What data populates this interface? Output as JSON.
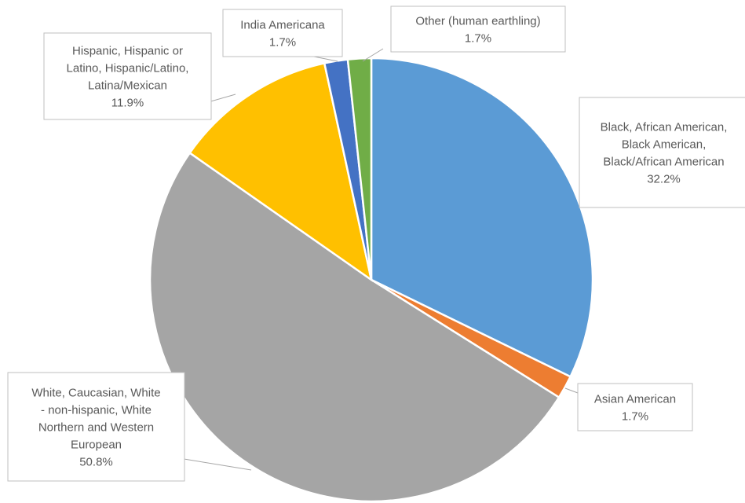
{
  "chart_data": {
    "type": "pie",
    "title": "",
    "slices": [
      {
        "label_lines": [
          "Black, African American,",
          "Black American,",
          "Black/African American"
        ],
        "percent_label": "32.2%",
        "value": 32.2,
        "color": "#5b9bd5"
      },
      {
        "label_lines": [
          "Asian American"
        ],
        "percent_label": "1.7%",
        "value": 1.7,
        "color": "#ed7d31"
      },
      {
        "label_lines": [
          "White, Caucasian, White",
          "- non-hispanic, White",
          "Northern and Western",
          "European"
        ],
        "percent_label": "50.8%",
        "value": 50.8,
        "color": "#a5a5a5"
      },
      {
        "label_lines": [
          "Hispanic, Hispanic or",
          "Latino, Hispanic/Latino,",
          "Latina/Mexican"
        ],
        "percent_label": "11.9%",
        "value": 11.9,
        "color": "#ffc000"
      },
      {
        "label_lines": [
          "India Americana"
        ],
        "percent_label": "1.7%",
        "value": 1.7,
        "color": "#4472c4"
      },
      {
        "label_lines": [
          "Other (human earthling)"
        ],
        "percent_label": "1.7%",
        "value": 1.7,
        "color": "#70ad47"
      }
    ]
  }
}
